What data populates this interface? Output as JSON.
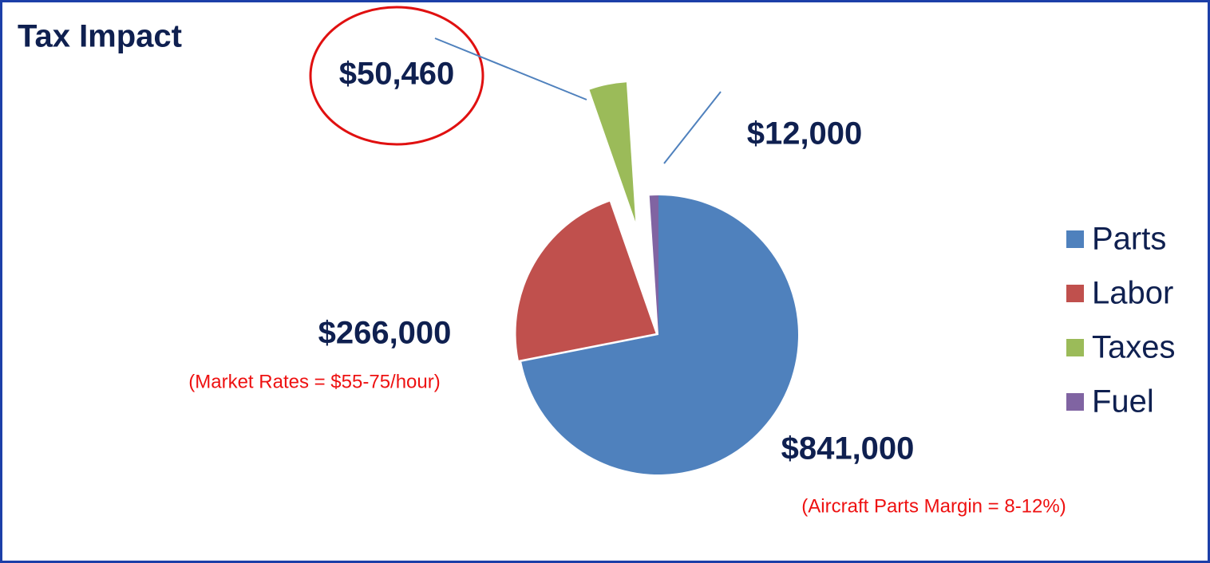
{
  "chart_data": {
    "type": "pie",
    "title": "Tax Impact",
    "categories": [
      "Parts",
      "Labor",
      "Taxes",
      "Fuel"
    ],
    "values": [
      841000,
      266000,
      50460,
      12000
    ],
    "value_labels": [
      "$841,000",
      "$266,000",
      "$50,460",
      "$12,000"
    ],
    "colors": [
      "#4f81bd",
      "#c0504d",
      "#9bbb59",
      "#8064a2"
    ],
    "annotations": [
      "(Aircraft Parts Margin = 8-12%)",
      "(Market Rates = $55-75/hour)"
    ],
    "legend": "right"
  }
}
